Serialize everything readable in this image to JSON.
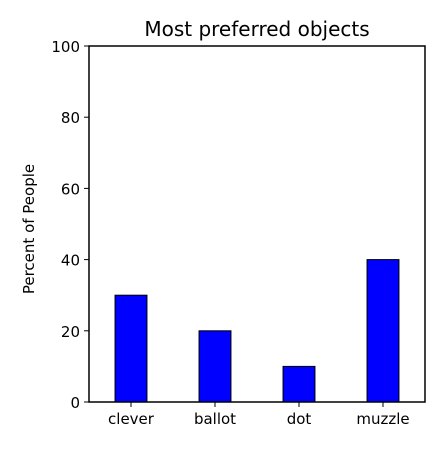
{
  "chart_data": {
    "type": "bar",
    "title": "Most preferred objects",
    "xlabel": "",
    "ylabel": "Percent of People",
    "categories": [
      "clever",
      "ballot",
      "dot",
      "muzzle"
    ],
    "values": [
      30,
      20,
      10,
      40
    ],
    "ylim": [
      0,
      100
    ],
    "yticks": [
      0,
      20,
      40,
      60,
      80,
      100
    ],
    "bar_color": "#0000ff",
    "grid": false,
    "legend": "none"
  }
}
